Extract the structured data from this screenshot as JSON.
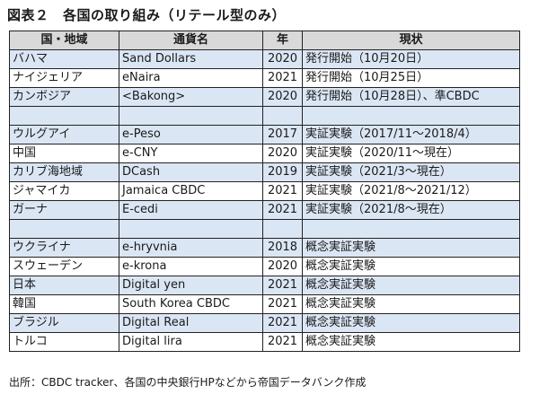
{
  "title": "図表２　各国の取り組み（リテール型のみ）",
  "headers": [
    "国・地域",
    "通貨名",
    "年",
    "現状"
  ],
  "rows": [
    {
      "country": "バハマ",
      "currency": "Sand Dollars",
      "year": "2020",
      "status": "発行開始（10月20日）"
    },
    {
      "country": "ナイジェリア",
      "currency": "eNaira",
      "year": "2021",
      "status": "発行開始（10月25日）"
    },
    {
      "country": "カンボジア",
      "currency": "<Bakong>",
      "year": "2020",
      "status": "発行開始（10月28日）、準CBDC"
    },
    {
      "country": "",
      "currency": "",
      "year": "",
      "status": ""
    },
    {
      "country": "ウルグアイ",
      "currency": "e-Peso",
      "year": "2017",
      "status": "実証実験（2017/11～2018/4）"
    },
    {
      "country": "中国",
      "currency": "e-CNY",
      "year": "2020",
      "status": "実証実験（2020/11～現在）"
    },
    {
      "country": "カリブ海地域",
      "currency": "DCash",
      "year": "2019",
      "status": "実証実験（2021/3～現在）"
    },
    {
      "country": "ジャマイカ",
      "currency": "Jamaica CBDC",
      "year": "2021",
      "status": "実証実験（2021/8～2021/12）"
    },
    {
      "country": "ガーナ",
      "currency": "E-cedi",
      "year": "2021",
      "status": "実証実験（2021/8～現在）"
    },
    {
      "country": "",
      "currency": "",
      "year": "",
      "status": ""
    },
    {
      "country": "ウクライナ",
      "currency": "e-hryvnia",
      "year": "2018",
      "status": "概念実証実験"
    },
    {
      "country": "スウェーデン",
      "currency": "e-krona",
      "year": "2020",
      "status": "概念実証実験"
    },
    {
      "country": "日本",
      "currency": "Digital yen",
      "year": "2021",
      "status": "概念実証実験"
    },
    {
      "country": "韓国",
      "currency": "South Korea CBDC",
      "year": "2021",
      "status": "概念実証実験"
    },
    {
      "country": "ブラジル",
      "currency": "Digital Real",
      "year": "2021",
      "status": "概念実証実験"
    },
    {
      "country": "トルコ",
      "currency": "Digital lira",
      "year": "2021",
      "status": "概念実証実験"
    }
  ],
  "source": "出所：CBDC tracker、各国の中央銀行HPなどから帝国データバンク作成",
  "colors": {
    "header_bg": "#d9d9d9",
    "row_blue": "#dbe6f4",
    "row_white": "#ffffff",
    "border": "#222222"
  }
}
